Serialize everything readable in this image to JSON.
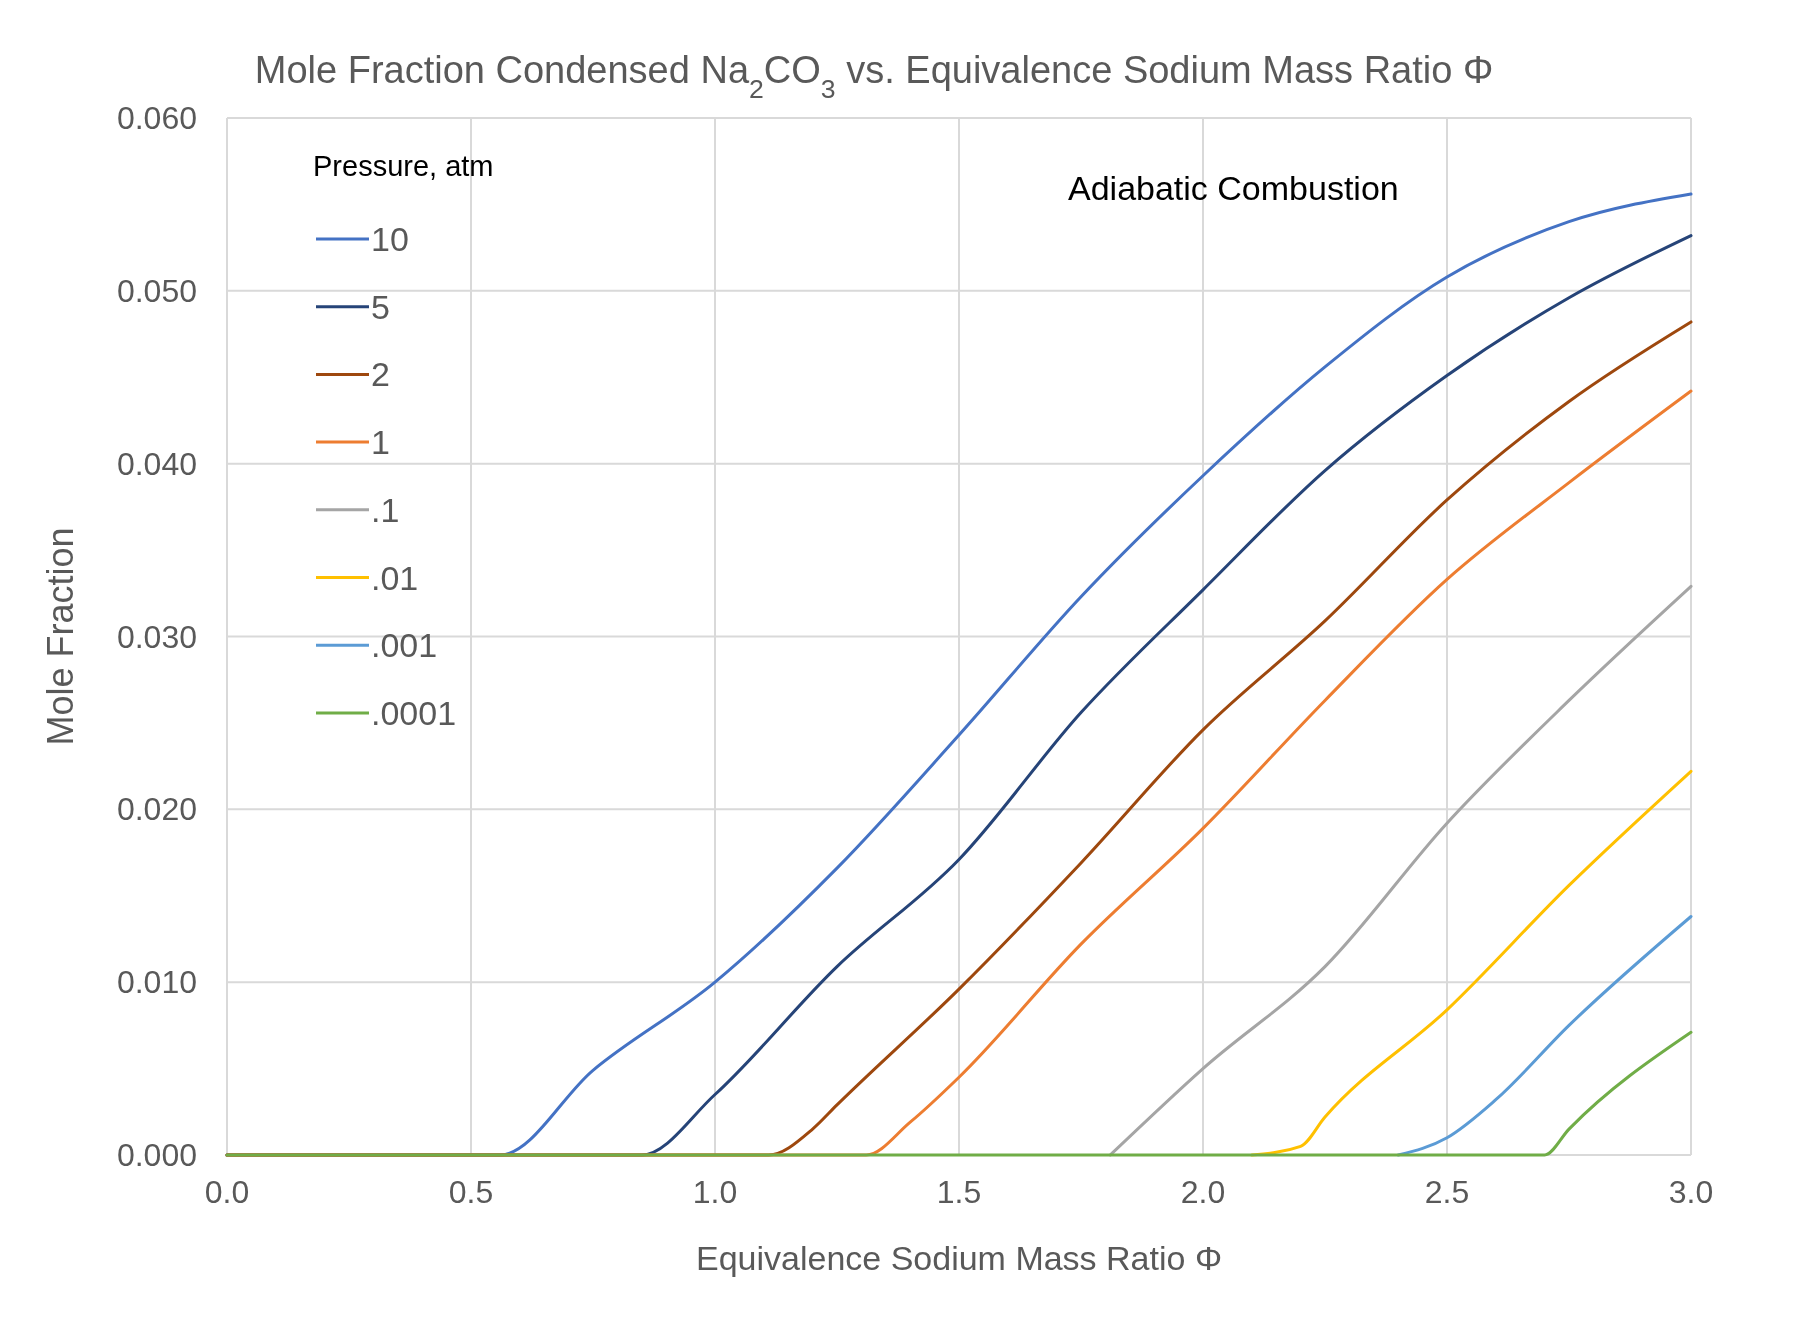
{
  "chart_data": {
    "type": "line",
    "title": "Mole Fraction Condensed Na$_{2}$CO$_{3}$ vs. Equivalence Sodium Mass Ratio Φ",
    "xlabel": "Equivalence Sodium Mass Ratio Φ",
    "ylabel": "Mole Fraction",
    "legend_title": "Pressure, atm",
    "annotations": [
      "Adiabatic Combustion"
    ],
    "xlim": [
      0,
      3
    ],
    "ylim": [
      0,
      0.06
    ],
    "xticks": [
      {
        "value": 0,
        "label": "0.0"
      },
      {
        "value": 0.5,
        "label": "0.5"
      },
      {
        "value": 1,
        "label": "1.0"
      },
      {
        "value": 1.5,
        "label": "1.5"
      },
      {
        "value": 2,
        "label": "2.0"
      },
      {
        "value": 2.5,
        "label": "2.5"
      },
      {
        "value": 3,
        "label": "3.0"
      }
    ],
    "yticks": [
      {
        "value": 0,
        "label": "0.000"
      },
      {
        "value": 0.01,
        "label": "0.010"
      },
      {
        "value": 0.02,
        "label": "0.020"
      },
      {
        "value": 0.03,
        "label": "0.030"
      },
      {
        "value": 0.04,
        "label": "0.040"
      },
      {
        "value": 0.05,
        "label": "0.050"
      },
      {
        "value": 0.06,
        "label": "0.060"
      }
    ],
    "grid": true,
    "legend": "top left",
    "marker": "none",
    "line_style": "solid",
    "series": [
      {
        "name": "10",
        "color": "#4472c4",
        "x": [
          0,
          0.56,
          0.75,
          1,
          1.25,
          1.5,
          1.75,
          2,
          2.25,
          2.5,
          2.75,
          3
        ],
        "values": [
          0,
          0,
          0.0049,
          0.01,
          0.0166,
          0.0243,
          0.0323,
          0.0393,
          0.0456,
          0.0508,
          0.054,
          0.0556
        ]
      },
      {
        "name": "5",
        "color": "#264478",
        "x": [
          0,
          0.85,
          1,
          1.25,
          1.5,
          1.75,
          2,
          2.25,
          2.5,
          2.75,
          3
        ],
        "values": [
          0,
          0,
          0.0035,
          0.0109,
          0.0171,
          0.0256,
          0.0327,
          0.0396,
          0.0451,
          0.0496,
          0.0532
        ]
      },
      {
        "name": "2",
        "color": "#9e480e",
        "x": [
          0,
          1.11,
          1.2,
          1.25,
          1.5,
          1.75,
          2,
          2.25,
          2.5,
          2.75,
          3
        ],
        "values": [
          0,
          0,
          0.0015,
          0.0029,
          0.0096,
          0.0169,
          0.0246,
          0.0309,
          0.0379,
          0.0436,
          0.0482
        ]
      },
      {
        "name": "1",
        "color": "#ed7d31",
        "x": [
          0,
          1.31,
          1.4,
          1.5,
          1.75,
          2,
          2.25,
          2.5,
          2.75,
          3
        ],
        "values": [
          0,
          0,
          0.0019,
          0.0045,
          0.0122,
          0.0189,
          0.0263,
          0.0333,
          0.0389,
          0.0442
        ]
      },
      {
        "name": ".1",
        "color": "#a5a5a5",
        "x": [
          1.81,
          2,
          2.25,
          2.5,
          2.75,
          3
        ],
        "values": [
          0,
          0.005,
          0.0109,
          0.0192,
          0.0263,
          0.0329
        ]
      },
      {
        "name": ".01",
        "color": "#ffc000",
        "x": [
          2.1,
          2.2,
          2.25,
          2.5,
          2.75,
          3
        ],
        "values": [
          0,
          0.0005,
          0.0022,
          0.0084,
          0.0156,
          0.0222
        ]
      },
      {
        "name": ".001",
        "color": "#5b9bd5",
        "x": [
          2.4,
          2.5,
          2.6,
          2.75,
          3
        ],
        "values": [
          0,
          0.001,
          0.0032,
          0.0075,
          0.0138
        ]
      },
      {
        "name": ".0001",
        "color": "#70ad47",
        "x": [
          0,
          2.7,
          2.75,
          3
        ],
        "values": [
          0,
          0,
          0.0015,
          0.0071
        ]
      }
    ]
  }
}
